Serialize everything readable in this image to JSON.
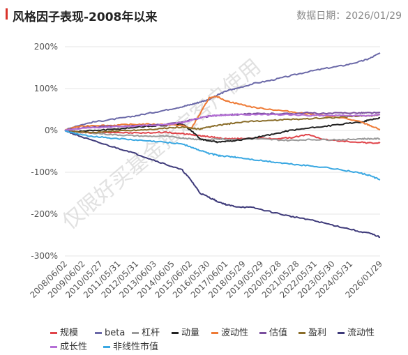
{
  "header": {
    "title": "风格因子表现-2008年以来",
    "date": "数据日期：2026/01/29",
    "accent_color": "#d9342b"
  },
  "watermark": "仅限好买基金指定客户使用",
  "chart_data": {
    "type": "line",
    "title": "风格因子表现-2008年以来",
    "xlabel": "",
    "ylabel": "",
    "y_unit": "%",
    "ylim": [
      -300,
      200
    ],
    "yticks": [
      200,
      100,
      0,
      -100,
      -200,
      -300
    ],
    "ytick_labels": [
      "200%",
      "100%",
      "0%",
      "-100%",
      "-200%",
      "-300%"
    ],
    "xlim": [
      2008.42,
      2026.08
    ],
    "x": [
      2008.42,
      2009.0,
      2010.0,
      2011.0,
      2012.0,
      2013.0,
      2014.0,
      2015.0,
      2015.5,
      2016.0,
      2016.5,
      2017.0,
      2017.5,
      2018.0,
      2019.0,
      2020.0,
      2021.0,
      2022.0,
      2023.0,
      2024.0,
      2025.0,
      2025.5,
      2026.08
    ],
    "xticks": [
      {
        "x": 2008.42,
        "label": "2008/06/02"
      },
      {
        "x": 2009.42,
        "label": "2009/06/02"
      },
      {
        "x": 2010.41,
        "label": "2010/05/27"
      },
      {
        "x": 2011.41,
        "label": "2011/05/31"
      },
      {
        "x": 2012.41,
        "label": "2012/05/31"
      },
      {
        "x": 2013.42,
        "label": "2013/06/03"
      },
      {
        "x": 2014.43,
        "label": "2014/06/05"
      },
      {
        "x": 2015.42,
        "label": "2015/06/02"
      },
      {
        "x": 2016.41,
        "label": "2016/05/30"
      },
      {
        "x": 2017.42,
        "label": "2017/06/01"
      },
      {
        "x": 2018.41,
        "label": "2018/05/29"
      },
      {
        "x": 2019.41,
        "label": "2019/05/29"
      },
      {
        "x": 2020.41,
        "label": "2020/05/28"
      },
      {
        "x": 2021.41,
        "label": "2021/05/28"
      },
      {
        "x": 2022.41,
        "label": "2022/05/31"
      },
      {
        "x": 2023.41,
        "label": "2023/05/30"
      },
      {
        "x": 2024.41,
        "label": "2024/05/31"
      },
      {
        "x": 2026.08,
        "label": "2026/01/29"
      }
    ],
    "series": [
      {
        "name": "规模",
        "color": "#e0444a",
        "values": [
          0,
          -3,
          -6,
          -4,
          -6,
          -6,
          -4,
          -8,
          -10,
          -12,
          -15,
          -18,
          -20,
          -20,
          -18,
          -20,
          -18,
          -10,
          -22,
          -26,
          -28,
          -30,
          -30
        ]
      },
      {
        "name": "beta",
        "color": "#6b69a8",
        "values": [
          0,
          10,
          20,
          26,
          32,
          40,
          48,
          57,
          62,
          68,
          74,
          85,
          95,
          100,
          112,
          120,
          130,
          140,
          148,
          155,
          165,
          172,
          185
        ]
      },
      {
        "name": "杠杆",
        "color": "#9a9a9a",
        "values": [
          0,
          -2,
          -6,
          -10,
          -12,
          -14,
          -14,
          -18,
          -20,
          -22,
          -22,
          -20,
          -21,
          -22,
          -20,
          -22,
          -24,
          -22,
          -22,
          -22,
          -20,
          -20,
          -20
        ]
      },
      {
        "name": "动量",
        "color": "#222222",
        "values": [
          0,
          -3,
          0,
          2,
          6,
          10,
          12,
          15,
          0,
          -20,
          -25,
          -28,
          -26,
          -24,
          -18,
          -10,
          0,
          5,
          10,
          15,
          20,
          25,
          30
        ]
      },
      {
        "name": "波动性",
        "color": "#ee7a35",
        "values": [
          0,
          8,
          12,
          12,
          14,
          15,
          14,
          12,
          5,
          40,
          78,
          80,
          70,
          65,
          55,
          50,
          45,
          40,
          35,
          30,
          20,
          12,
          2
        ]
      },
      {
        "name": "估值",
        "color": "#7a4f9e",
        "values": [
          0,
          5,
          8,
          10,
          10,
          12,
          15,
          20,
          25,
          30,
          34,
          36,
          38,
          38,
          40,
          40,
          40,
          42,
          40,
          42,
          42,
          42,
          42
        ]
      },
      {
        "name": "盈利",
        "color": "#8a6d2a",
        "values": [
          0,
          -3,
          -5,
          -2,
          0,
          2,
          5,
          8,
          5,
          3,
          8,
          12,
          15,
          18,
          22,
          24,
          26,
          28,
          30,
          32,
          35,
          35,
          38
        ]
      },
      {
        "name": "流动性",
        "color": "#3e3a7a",
        "values": [
          0,
          -10,
          -25,
          -38,
          -50,
          -65,
          -80,
          -95,
          -120,
          -150,
          -160,
          -170,
          -178,
          -182,
          -185,
          -195,
          -205,
          -212,
          -222,
          -232,
          -242,
          -246,
          -255
        ]
      },
      {
        "name": "成长性",
        "color": "#b56fd6",
        "values": [
          0,
          3,
          6,
          8,
          10,
          12,
          14,
          18,
          25,
          30,
          34,
          36,
          37,
          38,
          38,
          38,
          38,
          36,
          36,
          36,
          35,
          35,
          38
        ]
      },
      {
        "name": "非线性市值",
        "color": "#3aa8e2",
        "values": [
          0,
          -8,
          -14,
          -18,
          -22,
          -25,
          -28,
          -32,
          -40,
          -48,
          -55,
          -60,
          -62,
          -64,
          -70,
          -75,
          -80,
          -84,
          -88,
          -95,
          -102,
          -108,
          -118
        ]
      }
    ],
    "grid": "horizontal",
    "legend_position": "bottom"
  }
}
